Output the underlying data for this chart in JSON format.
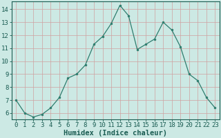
{
  "x": [
    0,
    1,
    2,
    3,
    4,
    5,
    6,
    7,
    8,
    9,
    10,
    11,
    12,
    13,
    14,
    15,
    16,
    17,
    18,
    19,
    20,
    21,
    22,
    23
  ],
  "y": [
    7.0,
    6.0,
    5.7,
    5.9,
    6.4,
    7.2,
    8.7,
    9.0,
    9.7,
    11.3,
    11.9,
    12.9,
    14.3,
    13.5,
    10.9,
    11.3,
    11.7,
    13.0,
    12.4,
    11.1,
    9.0,
    8.5,
    7.2,
    6.4
  ],
  "line_color": "#2e7d6e",
  "marker": "o",
  "marker_size": 2.0,
  "bg_color": "#cce9e4",
  "grid_color": "#b0d8d2",
  "xlabel": "Humidex (Indice chaleur)",
  "xlim": [
    -0.5,
    23.5
  ],
  "ylim": [
    5.5,
    14.6
  ],
  "xtick_labels": [
    "0",
    "1",
    "2",
    "3",
    "4",
    "5",
    "6",
    "7",
    "8",
    "9",
    "10",
    "11",
    "12",
    "13",
    "14",
    "15",
    "16",
    "17",
    "18",
    "19",
    "20",
    "21",
    "22",
    "23"
  ],
  "ytick_values": [
    6,
    7,
    8,
    9,
    10,
    11,
    12,
    13,
    14
  ],
  "xlabel_fontsize": 7.5,
  "tick_fontsize": 6.5,
  "label_color": "#1a5c52",
  "linewidth": 0.9
}
